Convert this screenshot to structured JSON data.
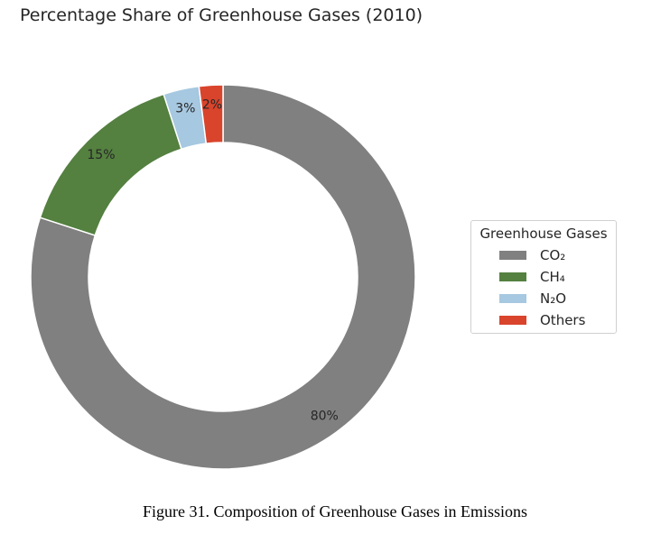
{
  "chart_data": {
    "type": "pie",
    "donut": true,
    "title": "Percentage Share of Greenhouse Gases (2010)",
    "categories": [
      "CO₂",
      "CH₄",
      "N₂O",
      "Others"
    ],
    "values": [
      80,
      15,
      3,
      2
    ],
    "labels": [
      "80%",
      "15%",
      "3%",
      "2%"
    ],
    "colors": [
      "#808080",
      "#548040",
      "#a6c8e0",
      "#d9442c"
    ],
    "start_angle": 90,
    "direction": "clockwise",
    "legend": {
      "title": "Greenhouse Gases",
      "placement": "right"
    }
  },
  "caption": "Figure 31.  Composition of Greenhouse Gases in Emissions"
}
